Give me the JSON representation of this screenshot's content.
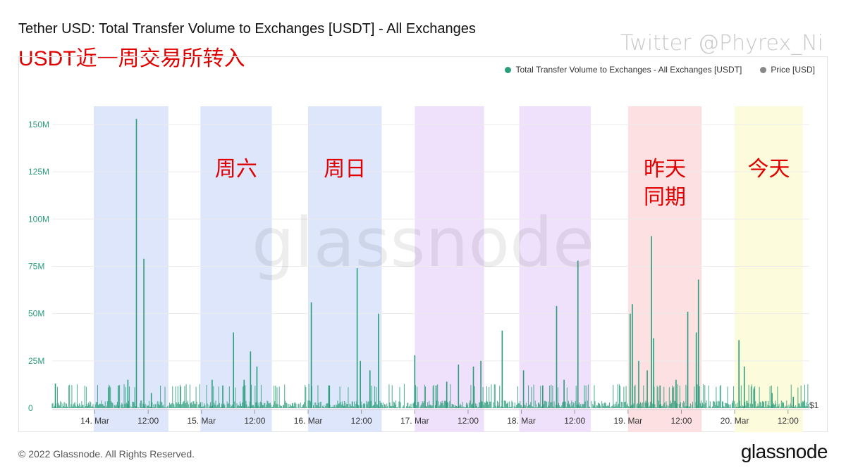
{
  "title": "Tether USD: Total Transfer Volume to Exchanges [USDT] - All Exchanges",
  "annotation_cn": "USDT近一周交易所转入",
  "twitter_handle": "Twitter @Phyrex_Ni",
  "watermark": "glassnode",
  "copyright": "© 2022 Glassnode. All Rights Reserved.",
  "brand": "glassnode",
  "colors": {
    "series": "#2a9d7a",
    "price": "#888888",
    "annotation": "#e00000"
  },
  "legend": [
    {
      "label": "Total Transfer Volume to Exchanges - All Exchanges [USDT]",
      "color": "#2a9d7a"
    },
    {
      "label": "Price [USD]",
      "color": "#888888"
    }
  ],
  "chart_data": {
    "type": "bar",
    "title": "Tether USD: Total Transfer Volume to Exchanges [USDT] - All Exchanges",
    "ylim": [
      0,
      160
    ],
    "y_ticks": [
      {
        "value": 0,
        "label": "0"
      },
      {
        "value": 25,
        "label": "25M"
      },
      {
        "value": 50,
        "label": "50M"
      },
      {
        "value": 75,
        "label": "75M"
      },
      {
        "value": 100,
        "label": "100M"
      },
      {
        "value": 125,
        "label": "125M"
      },
      {
        "value": 150,
        "label": "150M"
      }
    ],
    "y2_label": "$1",
    "xlim": [
      13.6,
      20.7
    ],
    "x_ticks": [
      {
        "value": 14.0,
        "label": "14. Mar"
      },
      {
        "value": 14.5,
        "label": "12:00"
      },
      {
        "value": 15.0,
        "label": "15. Mar"
      },
      {
        "value": 15.5,
        "label": "12:00"
      },
      {
        "value": 16.0,
        "label": "16. Mar"
      },
      {
        "value": 16.5,
        "label": "12:00"
      },
      {
        "value": 17.0,
        "label": "17. Mar"
      },
      {
        "value": 17.5,
        "label": "12:00"
      },
      {
        "value": 18.0,
        "label": "18. Mar"
      },
      {
        "value": 18.5,
        "label": "12:00"
      },
      {
        "value": 19.0,
        "label": "19. Mar"
      },
      {
        "value": 19.5,
        "label": "12:00"
      },
      {
        "value": 20.0,
        "label": "20. Mar"
      },
      {
        "value": 20.5,
        "label": "12:00"
      }
    ],
    "bands": [
      {
        "start": 13.99,
        "end": 14.69,
        "color": "#dde6fb",
        "label": ""
      },
      {
        "start": 14.99,
        "end": 15.66,
        "color": "#dde6fb",
        "label": "周六"
      },
      {
        "start": 16.0,
        "end": 16.69,
        "color": "#dde6fb",
        "label": "周日"
      },
      {
        "start": 17.0,
        "end": 17.65,
        "color": "#efe0fb",
        "label": ""
      },
      {
        "start": 17.98,
        "end": 18.65,
        "color": "#efe0fb",
        "label": ""
      },
      {
        "start": 19.0,
        "end": 19.69,
        "color": "#fde0e2",
        "label": "昨天\n同期"
      },
      {
        "start": 20.0,
        "end": 20.64,
        "color": "#fcfcdc",
        "label": "今天"
      }
    ],
    "spikes": [
      [
        13.63,
        13
      ],
      [
        14.39,
        153
      ],
      [
        14.46,
        79
      ],
      [
        14.22,
        12
      ],
      [
        14.31,
        15
      ],
      [
        14.53,
        8
      ],
      [
        15.3,
        40
      ],
      [
        15.46,
        30
      ],
      [
        15.52,
        22
      ],
      [
        15.1,
        15
      ],
      [
        15.2,
        12
      ],
      [
        15.4,
        15
      ],
      [
        16.03,
        56
      ],
      [
        16.46,
        74
      ],
      [
        16.49,
        25
      ],
      [
        16.66,
        50
      ],
      [
        16.58,
        20
      ],
      [
        16.2,
        12
      ],
      [
        17.0,
        28
      ],
      [
        17.41,
        23
      ],
      [
        17.55,
        22
      ],
      [
        17.62,
        25
      ],
      [
        17.3,
        14
      ],
      [
        17.2,
        12
      ],
      [
        17.82,
        41
      ],
      [
        18.02,
        20
      ],
      [
        18.33,
        54
      ],
      [
        18.53,
        78
      ],
      [
        18.4,
        15
      ],
      [
        18.2,
        12
      ],
      [
        19.02,
        50
      ],
      [
        19.04,
        55
      ],
      [
        19.22,
        91
      ],
      [
        19.24,
        37
      ],
      [
        19.18,
        20
      ],
      [
        19.1,
        25
      ],
      [
        19.56,
        51
      ],
      [
        19.64,
        40
      ],
      [
        19.66,
        68
      ],
      [
        19.3,
        12
      ],
      [
        19.45,
        15
      ],
      [
        20.04,
        36
      ],
      [
        20.09,
        22
      ],
      [
        20.18,
        10
      ],
      [
        20.35,
        8
      ],
      [
        20.55,
        6
      ]
    ],
    "baseline_noise_max": 8
  }
}
